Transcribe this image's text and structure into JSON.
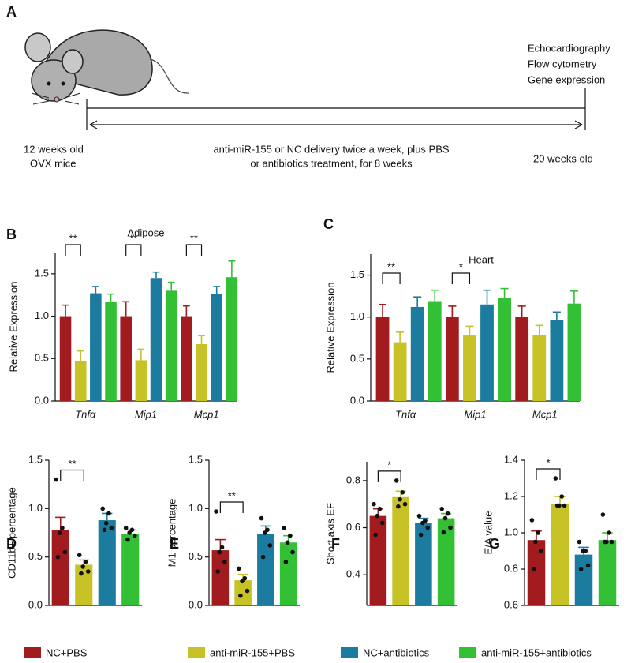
{
  "diagram": {
    "panel": "A",
    "start_age": "12 weeks old",
    "start_group": "OVX mice",
    "treatment_line1": "anti-miR-155 or NC delivery twice a week, plus PBS",
    "treatment_line2": "or antibiotics treatment, for 8 weeks",
    "end_age": "20 weeks old",
    "assays": [
      "Echocardiography",
      "Flow cytometry",
      "Gene expression"
    ]
  },
  "groups": [
    {
      "name": "NC+PBS",
      "color": "#a11b1f"
    },
    {
      "name": "anti-miR-155+PBS",
      "color": "#c7c225"
    },
    {
      "name": "NC+antibiotics",
      "color": "#1b7c9f"
    },
    {
      "name": "anti-miR-155+antibiotics",
      "color": "#33c035"
    }
  ],
  "chart_data": [
    {
      "panel": "B",
      "type": "bar",
      "title": "Adipose",
      "ylabel": "Relative Expression",
      "categories": [
        "Tnfα",
        "Mip1",
        "Mcp1"
      ],
      "series": [
        {
          "values": [
            1.0,
            1.0,
            1.0
          ],
          "errors": [
            0.13,
            0.17,
            0.12
          ]
        },
        {
          "values": [
            0.47,
            0.48,
            0.67
          ],
          "errors": [
            0.12,
            0.13,
            0.1
          ]
        },
        {
          "values": [
            1.27,
            1.45,
            1.26
          ],
          "errors": [
            0.08,
            0.07,
            0.09
          ]
        },
        {
          "values": [
            1.17,
            1.3,
            1.46
          ],
          "errors": [
            0.09,
            0.1,
            0.19
          ]
        }
      ],
      "significance": [
        "**",
        "**",
        "**"
      ],
      "ylim": [
        0,
        1.75
      ],
      "yticks": [
        {
          "value": 0,
          "label": "0.0"
        },
        0.5,
        {
          "value": 1,
          "label": "1.0"
        },
        1.5
      ]
    },
    {
      "panel": "C",
      "type": "bar",
      "title": "Heart",
      "ylabel": "Relative Expression",
      "categories": [
        "Tnfα",
        "Mip1",
        "Mcp1"
      ],
      "series": [
        {
          "values": [
            1.0,
            1.0,
            1.0
          ],
          "errors": [
            0.15,
            0.13,
            0.13
          ]
        },
        {
          "values": [
            0.7,
            0.78,
            0.79
          ],
          "errors": [
            0.12,
            0.11,
            0.11
          ]
        },
        {
          "values": [
            1.12,
            1.15,
            0.96
          ],
          "errors": [
            0.12,
            0.17,
            0.1
          ]
        },
        {
          "values": [
            1.19,
            1.23,
            1.16
          ],
          "errors": [
            0.13,
            0.11,
            0.15
          ]
        }
      ],
      "significance": [
        "**",
        "*",
        null
      ],
      "ylim": [
        0,
        1.75
      ],
      "yticks": [
        {
          "value": 0,
          "label": "0.0"
        },
        0.5,
        {
          "value": 1,
          "label": "1.0"
        },
        1.5
      ]
    },
    {
      "panel": "D",
      "type": "bar",
      "ylabel": "CD11b+ percentage",
      "series": [
        {
          "values": [
            0.78
          ],
          "errors": [
            0.13
          ],
          "points": [
            1.3,
            0.8,
            0.75,
            0.55,
            0.5
          ]
        },
        {
          "values": [
            0.42
          ],
          "errors": [
            0.05
          ],
          "points": [
            0.52,
            0.45,
            0.4,
            0.35,
            0.33
          ]
        },
        {
          "values": [
            0.88
          ],
          "errors": [
            0.07
          ],
          "points": [
            1.0,
            0.95,
            0.85,
            0.8,
            0.78
          ]
        },
        {
          "values": [
            0.74
          ],
          "errors": [
            0.04
          ],
          "points": [
            0.8,
            0.78,
            0.75,
            0.72,
            0.68
          ]
        }
      ],
      "significance": "**",
      "ylim": [
        0,
        1.5
      ],
      "yticks": [
        {
          "value": 0,
          "label": "0.0"
        },
        0.5,
        {
          "value": 1,
          "label": "1.0"
        },
        1.5
      ]
    },
    {
      "panel": "E",
      "type": "bar",
      "ylabel": "M1 percentage",
      "series": [
        {
          "values": [
            0.57
          ],
          "errors": [
            0.11
          ],
          "points": [
            0.97,
            0.6,
            0.55,
            0.45,
            0.35
          ]
        },
        {
          "values": [
            0.26
          ],
          "errors": [
            0.06
          ],
          "points": [
            0.38,
            0.28,
            0.25,
            0.15,
            0.1
          ]
        },
        {
          "values": [
            0.74
          ],
          "errors": [
            0.08
          ],
          "points": [
            0.9,
            0.78,
            0.75,
            0.62,
            0.5
          ]
        },
        {
          "values": [
            0.65
          ],
          "errors": [
            0.07
          ],
          "points": [
            0.8,
            0.72,
            0.65,
            0.55,
            0.45
          ]
        }
      ],
      "significance": "**",
      "ylim": [
        0,
        1.5
      ],
      "yticks": [
        {
          "value": 0,
          "label": "0.0"
        },
        0.5,
        {
          "value": 1,
          "label": "1.0"
        },
        1.5
      ]
    },
    {
      "panel": "F",
      "type": "bar",
      "ylabel": "Short axis EF",
      "series": [
        {
          "values": [
            0.65
          ],
          "errors": [
            0.03
          ],
          "points": [
            0.7,
            0.68,
            0.65,
            0.62,
            0.57
          ]
        },
        {
          "values": [
            0.73
          ],
          "errors": [
            0.025
          ],
          "points": [
            0.8,
            0.75,
            0.72,
            0.7,
            0.69
          ]
        },
        {
          "values": [
            0.62
          ],
          "errors": [
            0.02
          ],
          "points": [
            0.65,
            0.63,
            0.62,
            0.6,
            0.57
          ]
        },
        {
          "values": [
            0.64
          ],
          "errors": [
            0.02
          ],
          "points": [
            0.68,
            0.66,
            0.64,
            0.6,
            0.58
          ]
        }
      ],
      "significance": "*",
      "ylim": [
        0.27,
        0.88
      ],
      "yticks": [
        0.4,
        0.6,
        0.8
      ]
    },
    {
      "panel": "G",
      "type": "bar",
      "ylabel": "E/A value",
      "series": [
        {
          "values": [
            0.96
          ],
          "errors": [
            0.05
          ],
          "points": [
            1.07,
            1.0,
            0.95,
            0.9,
            0.8
          ]
        },
        {
          "values": [
            1.16
          ],
          "errors": [
            0.04
          ],
          "points": [
            1.3,
            1.2,
            1.15,
            1.15,
            1.15
          ]
        },
        {
          "values": [
            0.88
          ],
          "errors": [
            0.04
          ],
          "points": [
            0.95,
            0.9,
            0.9,
            0.82,
            0.8
          ]
        },
        {
          "values": [
            0.96
          ],
          "errors": [
            0.04
          ],
          "points": [
            1.1,
            1.0,
            0.95,
            0.95,
            0.95
          ]
        }
      ],
      "significance": "*",
      "ylim": [
        0.6,
        1.4
      ],
      "yticks": [
        0.6,
        0.8,
        {
          "value": 1,
          "label": "1.0"
        },
        1.2,
        1.4
      ]
    }
  ]
}
